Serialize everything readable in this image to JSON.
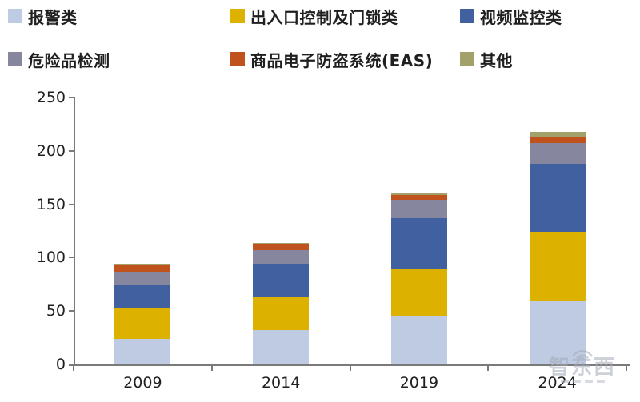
{
  "watermark": {
    "text": "智东西"
  },
  "chart_data": {
    "type": "bar",
    "stacked": true,
    "title": "",
    "xlabel": "",
    "ylabel": "",
    "categories": [
      "2009",
      "2014",
      "2019",
      "2024"
    ],
    "series": [
      {
        "name": "报警类",
        "color": "#bfcbe3",
        "values": [
          24,
          32,
          45,
          60
        ]
      },
      {
        "name": "出入口控制及门锁类",
        "color": "#ddb100",
        "values": [
          29,
          31,
          44,
          64
        ]
      },
      {
        "name": "视频监控类",
        "color": "#41609f",
        "values": [
          22,
          31,
          48,
          64
        ]
      },
      {
        "name": "危险品检测",
        "color": "#86869e",
        "values": [
          12,
          13,
          17,
          19
        ]
      },
      {
        "name": "商品电子防盗系统(EAS)",
        "color": "#c0521d",
        "values": [
          6,
          6,
          5,
          6
        ]
      },
      {
        "name": "其他",
        "color": "#a2a169",
        "values": [
          1,
          1,
          1,
          5
        ]
      }
    ],
    "totals": [
      94,
      114,
      160,
      218
    ],
    "ylim": [
      0,
      250
    ],
    "yticks": [
      0,
      50,
      100,
      150,
      200,
      250
    ],
    "grid": false,
    "legend_position": "top"
  }
}
